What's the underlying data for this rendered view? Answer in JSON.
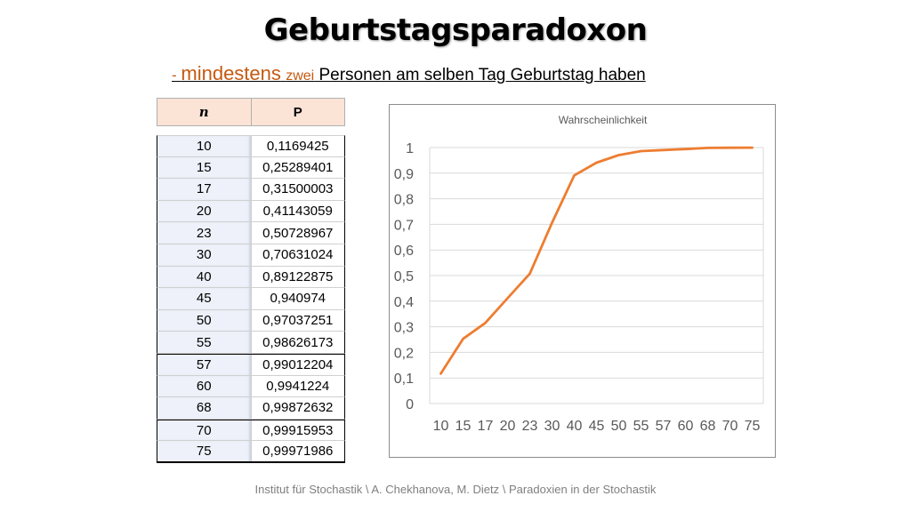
{
  "title": "Geburtstagsparadoxon",
  "subtitle": {
    "dash": "- ",
    "word1": "mindestens",
    "word2": "zwei",
    "rest": "Personen am selben Tag Geburtstag haben"
  },
  "table": {
    "headers": [
      "n",
      "P"
    ],
    "rows": [
      [
        "10",
        "0,1169425"
      ],
      [
        "15",
        "0,25289401"
      ],
      [
        "17",
        "0,31500003"
      ],
      [
        "20",
        "0,41143059"
      ],
      [
        "23",
        "0,50728967"
      ],
      [
        "30",
        "0,70631024"
      ],
      [
        "40",
        "0,89122875"
      ],
      [
        "45",
        "0,940974"
      ],
      [
        "50",
        "0,97037251"
      ],
      [
        "55",
        "0,98626173"
      ],
      [
        "57",
        "0,99012204"
      ],
      [
        "60",
        "0,9941224"
      ],
      [
        "68",
        "0,99872632"
      ],
      [
        "70",
        "0,99915953"
      ],
      [
        "75",
        "0,99971986"
      ]
    ]
  },
  "chart_data": {
    "type": "line",
    "title": "Wahrscheinlichkeit",
    "categories": [
      "10",
      "15",
      "17",
      "20",
      "23",
      "30",
      "40",
      "45",
      "50",
      "55",
      "57",
      "60",
      "68",
      "70",
      "75"
    ],
    "series": [
      {
        "values": [
          0.1169425,
          0.25289401,
          0.31500003,
          0.41143059,
          0.50728967,
          0.70631024,
          0.89122875,
          0.940974,
          0.97037251,
          0.98626173,
          0.99012204,
          0.9941224,
          0.99872632,
          0.99915953,
          0.99971986
        ],
        "color": "#ed7d31"
      }
    ],
    "ylim": [
      0,
      1
    ],
    "yticks": [
      "0",
      "0,1",
      "0,2",
      "0,3",
      "0,4",
      "0,5",
      "0,6",
      "0,7",
      "0,8",
      "0,9",
      "1"
    ],
    "xlabel": "",
    "ylabel": "",
    "grid": true,
    "legend": "none"
  },
  "footer": "Institut für Stochastik \\  A. Chekhanova, M. Dietz \\ Paradoxien in der Stochastik"
}
